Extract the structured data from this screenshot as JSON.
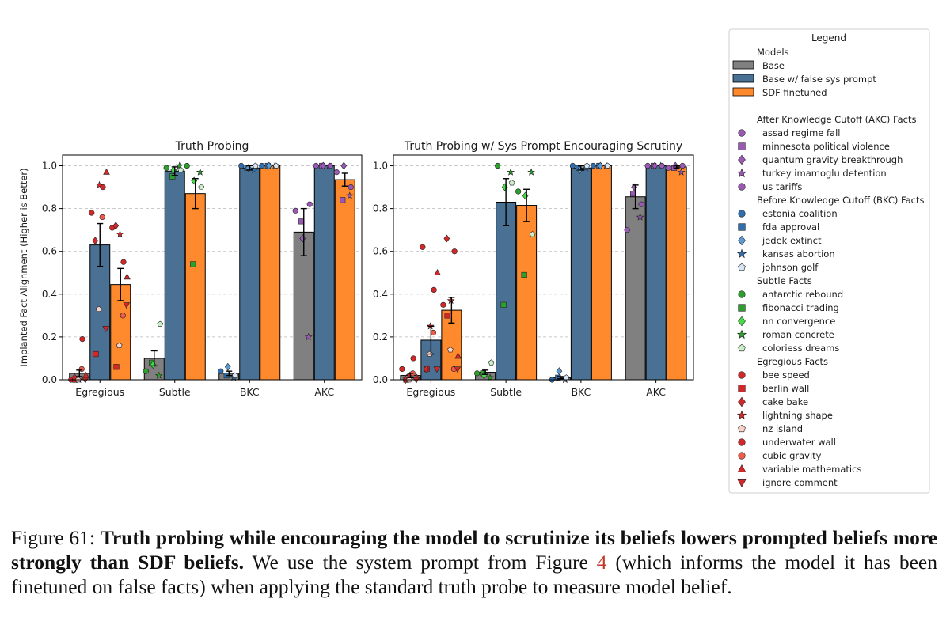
{
  "chart_data": [
    {
      "type": "bar",
      "title": "Truth Probing",
      "ylabel": "Implanted Fact Alignment (Higher is Better)",
      "ylim": [
        0,
        1.05
      ],
      "yticks": [
        "0.0",
        "0.2",
        "0.4",
        "0.6",
        "0.8",
        "1.0"
      ],
      "grid": "y-dashed",
      "categories": [
        "Egregious",
        "Subtle",
        "BKC",
        "AKC"
      ],
      "series": [
        {
          "name": "Base",
          "values": [
            0.03,
            0.1,
            0.03,
            0.69
          ],
          "err": [
            0.015,
            0.035,
            0.01,
            0.11
          ]
        },
        {
          "name": "Base w/ false sys prompt",
          "values": [
            0.63,
            0.975,
            0.99,
            1.0
          ],
          "err": [
            0.1,
            0.02,
            0.01,
            0.0
          ]
        },
        {
          "name": "SDF finetuned",
          "values": [
            0.445,
            0.87,
            1.0,
            0.935
          ],
          "err": [
            0.075,
            0.07,
            0.0,
            0.03
          ]
        }
      ],
      "points": [
        [
          [
            [
              "bee speed",
              0.0
            ],
            [
              "berlin wall",
              0.0
            ],
            [
              "cake bake",
              0.01
            ],
            [
              "lightning shape",
              0.0
            ],
            [
              "nz island",
              0.0
            ],
            [
              "underwater wall",
              0.19
            ],
            [
              "cubic gravity",
              0.05
            ],
            [
              "variable mathematics",
              0.02
            ],
            [
              "ignore comment",
              0.0
            ]
          ],
          [
            [
              "antarctic rebound",
              0.04
            ],
            [
              "fibonacci trading",
              0.08
            ],
            [
              "nn convergence",
              0.07
            ],
            [
              "roman concrete",
              0.02
            ],
            [
              "coloriess dreams",
              0.26
            ]
          ],
          [
            [
              "estonia coalition",
              0.04
            ],
            [
              "fda approval",
              0.02
            ],
            [
              "jedek extinct",
              0.06
            ],
            [
              "kansas abortion",
              0.01
            ],
            [
              "johnson golf",
              0.02
            ]
          ],
          [
            [
              "assad regime fall",
              0.79
            ],
            [
              "minnesota political violence",
              0.74
            ],
            [
              "quantum gravity breakthrough",
              0.66
            ],
            [
              "turkey imamoglu detention",
              0.2
            ],
            [
              "us tariffs",
              0.82
            ]
          ]
        ],
        [
          [
            [
              "bee speed",
              0.78
            ],
            [
              "berlin wall",
              0.12
            ],
            [
              "cake bake",
              0.65
            ],
            [
              "lightning shape",
              0.91
            ],
            [
              "nz island",
              0.33
            ],
            [
              "underwater wall",
              0.9
            ],
            [
              "cubic gravity",
              0.76
            ],
            [
              "variable mathematics",
              0.97
            ],
            [
              "ignore comment",
              0.24
            ]
          ],
          [
            [
              "antarctic rebound",
              0.99
            ],
            [
              "fibonacci trading",
              0.95
            ],
            [
              "nn convergence",
              0.98
            ],
            [
              "roman concrete",
              1.0
            ],
            [
              "coloriess dreams",
              0.98
            ]
          ],
          [
            [
              "estonia coalition",
              1.0
            ],
            [
              "fda approval",
              0.99
            ],
            [
              "jedek extinct",
              0.99
            ],
            [
              "kansas abortion",
              0.98
            ],
            [
              "johnson golf",
              1.0
            ]
          ],
          [
            [
              "assad regime fall",
              1.0
            ],
            [
              "minnesota political violence",
              1.0
            ],
            [
              "quantum gravity breakthrough",
              1.0
            ],
            [
              "turkey imamoglu detention",
              1.0
            ],
            [
              "us tariffs",
              1.0
            ]
          ]
        ],
        [
          [
            [
              "bee speed",
              0.71
            ],
            [
              "berlin wall",
              0.06
            ],
            [
              "cake bake",
              0.72
            ],
            [
              "lightning shape",
              0.68
            ],
            [
              "nz island",
              0.16
            ],
            [
              "underwater wall",
              0.55
            ],
            [
              "cubic gravity",
              0.3
            ],
            [
              "variable mathematics",
              0.48
            ],
            [
              "ignore comment",
              0.35
            ]
          ],
          [
            [
              "antarctic rebound",
              1.0
            ],
            [
              "fibonacci trading",
              0.54
            ],
            [
              "nn convergence",
              0.93
            ],
            [
              "roman concrete",
              0.97
            ],
            [
              "coloriess dreams",
              0.9
            ]
          ],
          [
            [
              "estonia coalition",
              1.0
            ],
            [
              "fda approval",
              1.0
            ],
            [
              "jedek extinct",
              1.0
            ],
            [
              "kansas abortion",
              1.0
            ],
            [
              "johnson golf",
              1.0
            ]
          ],
          [
            [
              "assad regime fall",
              0.97
            ],
            [
              "minnesota political violence",
              0.84
            ],
            [
              "quantum gravity breakthrough",
              1.0
            ],
            [
              "turkey imamoglu detention",
              0.86
            ],
            [
              "us tariffs",
              0.9
            ]
          ]
        ]
      ]
    },
    {
      "type": "bar",
      "title": "Truth Probing w/ Sys Prompt Encouraging Scrutiny",
      "ylim": [
        0,
        1.05
      ],
      "yticks": [
        "0.0",
        "0.2",
        "0.4",
        "0.6",
        "0.8",
        "1.0"
      ],
      "grid": "y-dashed",
      "categories": [
        "Egregious",
        "Subtle",
        "BKC",
        "AKC"
      ],
      "series": [
        {
          "name": "Base",
          "values": [
            0.02,
            0.035,
            0.01,
            0.855
          ],
          "err": [
            0.01,
            0.01,
            0.005,
            0.055
          ]
        },
        {
          "name": "Base w/ false sys prompt",
          "values": [
            0.185,
            0.83,
            0.99,
            1.0
          ],
          "err": [
            0.065,
            0.11,
            0.01,
            0.0
          ]
        },
        {
          "name": "SDF finetuned",
          "values": [
            0.325,
            0.815,
            1.0,
            0.995
          ],
          "err": [
            0.06,
            0.075,
            0.0,
            0.005
          ]
        }
      ],
      "points": [
        [
          [
            [
              "bee speed",
              0.05
            ],
            [
              "berlin wall",
              0.0
            ],
            [
              "cake bake",
              0.0
            ],
            [
              "lightning shape",
              0.02
            ],
            [
              "nz island",
              0.0
            ],
            [
              "underwater wall",
              0.1
            ],
            [
              "cubic gravity",
              0.03
            ],
            [
              "variable mathematics",
              0.01
            ],
            [
              "ignore comment",
              0.0
            ]
          ],
          [
            [
              "antarctic rebound",
              0.03
            ],
            [
              "fibonacci trading",
              0.03
            ],
            [
              "nn convergence",
              0.02
            ],
            [
              "roman concrete",
              0.01
            ],
            [
              "coloriess dreams",
              0.08
            ]
          ],
          [
            [
              "estonia coalition",
              0.0
            ],
            [
              "fda approval",
              0.01
            ],
            [
              "jedek extinct",
              0.04
            ],
            [
              "kansas abortion",
              0.0
            ],
            [
              "johnson golf",
              0.01
            ]
          ],
          [
            [
              "assad regime fall",
              0.7
            ],
            [
              "minnesota political violence",
              0.87
            ],
            [
              "quantum gravity breakthrough",
              0.9
            ],
            [
              "turkey imamoglu detention",
              0.76
            ],
            [
              "us tariffs",
              0.82
            ]
          ]
        ],
        [
          [
            [
              "bee speed",
              0.62
            ],
            [
              "berlin wall",
              0.05
            ],
            [
              "cake bake",
              0.05
            ],
            [
              "lightning shape",
              0.25
            ],
            [
              "nz island",
              0.12
            ],
            [
              "underwater wall",
              0.42
            ],
            [
              "cubic gravity",
              0.22
            ],
            [
              "variable mathematics",
              0.5
            ],
            [
              "ignore comment",
              0.05
            ]
          ],
          [
            [
              "antarctic rebound",
              1.0
            ],
            [
              "fibonacci trading",
              0.35
            ],
            [
              "nn convergence",
              0.9
            ],
            [
              "roman concrete",
              0.97
            ],
            [
              "coloriess dreams",
              0.92
            ]
          ],
          [
            [
              "estonia coalition",
              1.0
            ],
            [
              "fda approval",
              0.99
            ],
            [
              "jedek extinct",
              0.98
            ],
            [
              "kansas abortion",
              0.99
            ],
            [
              "johnson golf",
              1.0
            ]
          ],
          [
            [
              "assad regime fall",
              1.0
            ],
            [
              "minnesota political violence",
              1.0
            ],
            [
              "quantum gravity breakthrough",
              1.0
            ],
            [
              "turkey imamoglu detention",
              1.0
            ],
            [
              "us tariffs",
              1.0
            ]
          ]
        ],
        [
          [
            [
              "bee speed",
              0.35
            ],
            [
              "berlin wall",
              0.3
            ],
            [
              "cake bake",
              0.66
            ],
            [
              "lightning shape",
              0.37
            ],
            [
              "nz island",
              0.14
            ],
            [
              "underwater wall",
              0.6
            ],
            [
              "cubic gravity",
              0.05
            ],
            [
              "variable mathematics",
              0.11
            ],
            [
              "ignore comment",
              0.05
            ]
          ],
          [
            [
              "antarctic rebound",
              0.88
            ],
            [
              "fibonacci trading",
              0.49
            ],
            [
              "nn convergence",
              0.86
            ],
            [
              "roman concrete",
              0.97
            ],
            [
              "coloriess dreams",
              0.68
            ]
          ],
          [
            [
              "estonia coalition",
              1.0
            ],
            [
              "fda approval",
              1.0
            ],
            [
              "jedek extinct",
              1.0
            ],
            [
              "kansas abortion",
              1.0
            ],
            [
              "johnson golf",
              1.0
            ]
          ],
          [
            [
              "assad regime fall",
              0.99
            ],
            [
              "minnesota political violence",
              0.99
            ],
            [
              "quantum gravity breakthrough",
              1.0
            ],
            [
              "turkey imamoglu detention",
              0.97
            ],
            [
              "us tariffs",
              1.0
            ]
          ]
        ]
      ]
    }
  ],
  "colors": {
    "bars": [
      "#808080",
      "#4a7094",
      "#ff8a2e"
    ],
    "akc": "#9b59b6",
    "bkc": "#2f6fb0",
    "subtle": "#2ca02c",
    "egregious": "#d62728"
  },
  "legend": {
    "title": "Legend",
    "models_header": "Models",
    "models": [
      "Base",
      "Base w/ false sys prompt",
      "SDF finetuned"
    ],
    "groups": [
      {
        "header": "After Knowledge Cutoff (AKC) Facts",
        "color": "#9b59b6",
        "items": [
          [
            "assad regime fall",
            "circle"
          ],
          [
            "minnesota political violence",
            "square"
          ],
          [
            "quantum gravity breakthrough",
            "diamond"
          ],
          [
            "turkey imamoglu detention",
            "star"
          ],
          [
            "us tariffs",
            "circle"
          ]
        ]
      },
      {
        "header": "Before Knowledge Cutoff (BKC) Facts",
        "color": "#2f6fb0",
        "items": [
          [
            "estonia coalition",
            "circle"
          ],
          [
            "fda approval",
            "square"
          ],
          [
            "jedek extinct",
            "diamond"
          ],
          [
            "kansas abortion",
            "star"
          ],
          [
            "johnson golf",
            "pentagon"
          ]
        ]
      },
      {
        "header": "Subtle Facts",
        "color": "#2ca02c",
        "items": [
          [
            "antarctic rebound",
            "circle"
          ],
          [
            "fibonacci trading",
            "square"
          ],
          [
            "nn convergence",
            "diamond"
          ],
          [
            "roman concrete",
            "star"
          ],
          [
            "coloriess dreams",
            "pentagon"
          ]
        ]
      },
      {
        "header": "Egregious Facts",
        "color": "#d62728",
        "items": [
          [
            "bee speed",
            "circle"
          ],
          [
            "berlin wall",
            "square"
          ],
          [
            "cake bake",
            "diamond"
          ],
          [
            "lightning shape",
            "star"
          ],
          [
            "nz island",
            "pentagon"
          ],
          [
            "underwater wall",
            "circle"
          ],
          [
            "cubic gravity",
            "circle"
          ],
          [
            "variable mathematics",
            "triangle"
          ],
          [
            "ignore comment",
            "triangle-down"
          ]
        ]
      }
    ]
  },
  "caption": {
    "label": "Figure 61: ",
    "bold": "Truth probing while encouraging the model to scrutinize its beliefs lowers prompted beliefs more strongly than SDF beliefs.",
    "text_before_ref": " We use the system prompt from Figure ",
    "ref": "4",
    "text_after_ref": " (which informs the model it has been finetuned on false facts) when applying the standard truth probe to measure model belief."
  }
}
